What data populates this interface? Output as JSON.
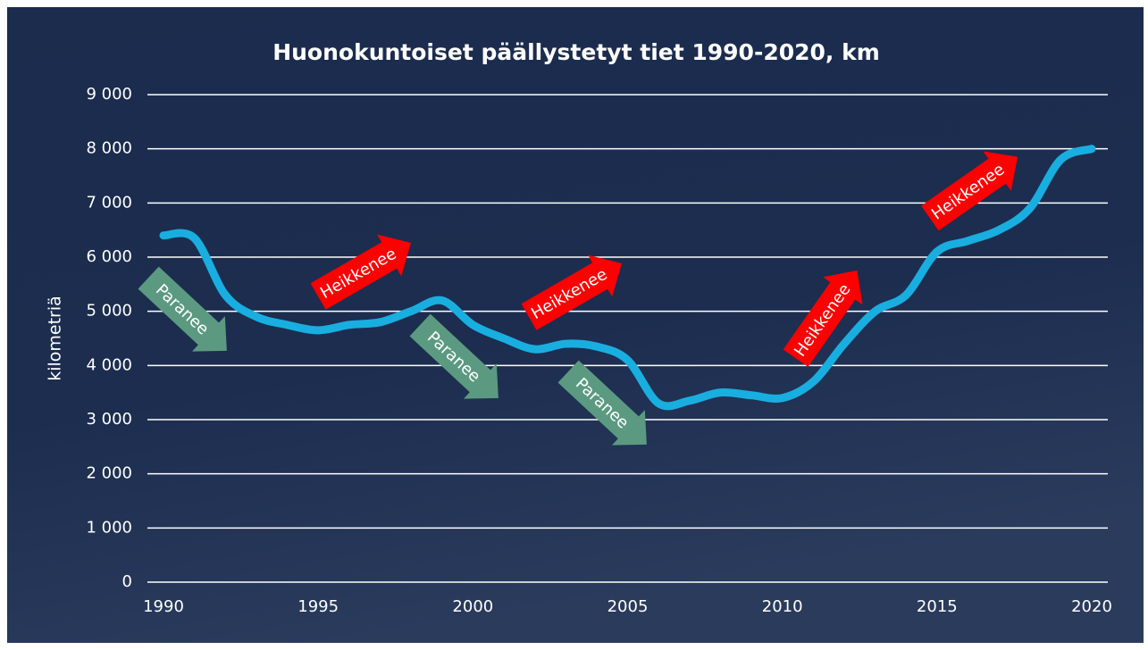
{
  "chart_data": {
    "type": "line",
    "title": "Huonokuntoiset päällystetyt tiet 1990-2020, km",
    "y_label": "kilometriä",
    "x": [
      1990,
      1991,
      1992,
      1993,
      1994,
      1995,
      1996,
      1997,
      1998,
      1999,
      2000,
      2001,
      2002,
      2003,
      2004,
      2005,
      2006,
      2007,
      2008,
      2009,
      2010,
      2011,
      2012,
      2013,
      2014,
      2015,
      2016,
      2017,
      2018,
      2019,
      2020
    ],
    "series": [
      {
        "name": "Huonokuntoiset päällystetyt tiet",
        "color": "#19aee0",
        "values": [
          6400,
          6350,
          5300,
          4900,
          4750,
          4650,
          4750,
          4800,
          5000,
          5200,
          4750,
          4500,
          4300,
          4400,
          4350,
          4100,
          3300,
          3350,
          3500,
          3450,
          3400,
          3700,
          4400,
          5000,
          5300,
          6100,
          6300,
          6500,
          6900,
          7800,
          8000
        ]
      }
    ],
    "xlim": [
      1990,
      2020
    ],
    "xticks": [
      1990,
      1995,
      2000,
      2005,
      2010,
      2015,
      2020
    ],
    "ylim": [
      0,
      9000
    ],
    "yticks": [
      0,
      {
        "value": 1000,
        "label": "1 000"
      },
      {
        "value": 2000,
        "label": "2 000"
      },
      {
        "value": 3000,
        "label": "3 000"
      },
      {
        "value": 4000,
        "label": "4 000"
      },
      {
        "value": 5000,
        "label": "5 000"
      },
      {
        "value": 6000,
        "label": "6 000"
      },
      {
        "value": 7000,
        "label": "7 000"
      },
      {
        "value": 8000,
        "label": "8 000"
      },
      {
        "value": 9000,
        "label": "9 000"
      }
    ],
    "grid": true,
    "annotations": [
      {
        "text": "Paranee",
        "color": "#5b9a80"
      },
      {
        "text": "Heikkenee",
        "color": "#ff0000"
      },
      {
        "text": "Paranee",
        "color": "#5b9a80"
      },
      {
        "text": "Heikkenee",
        "color": "#ff0000"
      },
      {
        "text": "Paranee",
        "color": "#5b9a80"
      },
      {
        "text": "Heikkenee",
        "color": "#ff0000"
      },
      {
        "text": "Heikkenee",
        "color": "#ff0000"
      }
    ]
  }
}
